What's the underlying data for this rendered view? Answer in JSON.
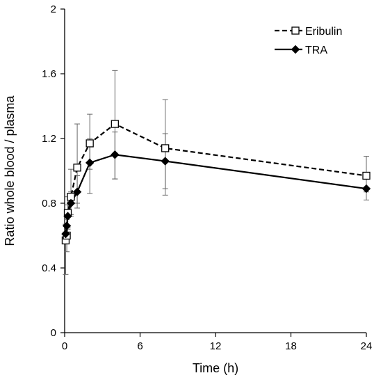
{
  "chart_data": {
    "type": "line",
    "xlabel": "Time (h)",
    "ylabel": "Ratio whole blood / plasma",
    "xlim": [
      0,
      24
    ],
    "ylim": [
      0,
      2
    ],
    "xticks": [
      0,
      6,
      12,
      18,
      24
    ],
    "yticks": [
      0,
      0.4,
      0.8,
      1.2,
      1.6,
      2
    ],
    "xtick_labels": [
      "0",
      "6",
      "12",
      "18",
      "24"
    ],
    "ytick_labels": [
      "0",
      "0.4",
      "0.8",
      "1.2",
      "1.6",
      "2"
    ],
    "legend_position": "top-right",
    "grid": false,
    "series": [
      {
        "name": "Eribulin",
        "line_style": "dashed",
        "marker": "open-square",
        "color": "#000000",
        "x": [
          0.08,
          0.17,
          0.25,
          0.5,
          1,
          2,
          4,
          8,
          24
        ],
        "y": [
          0.57,
          0.6,
          0.74,
          0.84,
          1.02,
          1.17,
          1.29,
          1.14,
          0.97
        ],
        "err_low": [
          0.21,
          0.1,
          0.1,
          0.12,
          0.22,
          0.16,
          0.34,
          0.29,
          0.1
        ],
        "err_high": [
          0.1,
          0.1,
          0.1,
          0.17,
          0.27,
          0.18,
          0.33,
          0.3,
          0.12
        ]
      },
      {
        "name": "TRA",
        "line_style": "solid",
        "marker": "filled-diamond",
        "color": "#000000",
        "x": [
          0.08,
          0.17,
          0.25,
          0.5,
          1,
          2,
          4,
          8,
          24
        ],
        "y": [
          0.61,
          0.66,
          0.72,
          0.8,
          0.87,
          1.05,
          1.1,
          1.06,
          0.89
        ],
        "err_low": [
          0.06,
          0.07,
          0.07,
          0.07,
          0.1,
          0.19,
          0.15,
          0.17,
          0.07
        ],
        "err_high": [
          0.06,
          0.07,
          0.07,
          0.07,
          0.1,
          0.15,
          0.14,
          0.17,
          0.09
        ]
      }
    ]
  }
}
